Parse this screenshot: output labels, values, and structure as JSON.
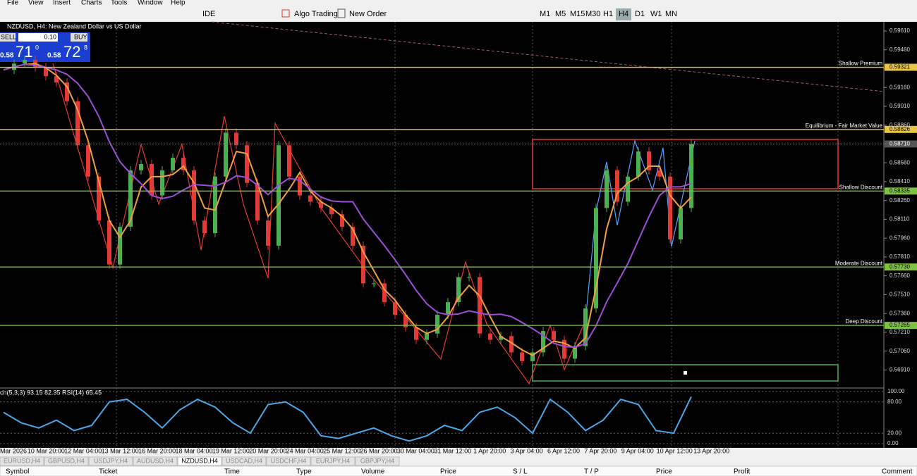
{
  "menu": [
    "File",
    "View",
    "Insert",
    "Charts",
    "Tools",
    "Window",
    "Help"
  ],
  "toolbar": {
    "ide": "IDE",
    "algo": "Algo Trading",
    "new_order": "New Order",
    "timeframes": [
      "M1",
      "M5",
      "M15",
      "M30",
      "H1",
      "H4",
      "D1",
      "W1",
      "MN"
    ],
    "active_timeframe": 5
  },
  "chart": {
    "title": "NZDUSD, H4:  New Zealand Dollar vs US Dollar",
    "trade": {
      "sell": "SELL",
      "volume": "0.10",
      "buy": "BUY",
      "bid_big": "0.58",
      "bid": "71",
      "bid_sup": "0",
      "ask_big": "0.58",
      "ask": "72",
      "ask_sup": "8"
    },
    "ylim": [
      0.56772,
      0.59683
    ],
    "yticks": [
      {
        "value": 0.5961,
        "label": "0.59610"
      },
      {
        "value": 0.5946,
        "label": "0.59460"
      },
      {
        "value": 0.5931,
        "label": "0.59310"
      },
      {
        "value": 0.5916,
        "label": "0.59160"
      },
      {
        "value": 0.5901,
        "label": "0.59010"
      },
      {
        "value": 0.5886,
        "label": "0.58860"
      },
      {
        "value": 0.5871,
        "label": "0.58710"
      },
      {
        "value": 0.5856,
        "label": "0.58560"
      },
      {
        "value": 0.5841,
        "label": "0.58410"
      },
      {
        "value": 0.5826,
        "label": "0.58260"
      },
      {
        "value": 0.5811,
        "label": "0.58110"
      },
      {
        "value": 0.5796,
        "label": "0.57960"
      },
      {
        "value": 0.5781,
        "label": "0.57810"
      },
      {
        "value": 0.5766,
        "label": "0.57660"
      },
      {
        "value": 0.5751,
        "label": "0.57510"
      },
      {
        "value": 0.5736,
        "label": "0.57360"
      },
      {
        "value": 0.5721,
        "label": "0.57210"
      },
      {
        "value": 0.5706,
        "label": "0.57060"
      },
      {
        "value": 0.5691,
        "label": "0.56910"
      }
    ],
    "levels": [
      {
        "name": "Shallow Premium",
        "value": 0.59321,
        "label": "0.59321",
        "color": "#e8c547"
      },
      {
        "name": "Equilibrium - Fair Market Value",
        "value": 0.58826,
        "label": "0.58826",
        "color": "#e8c547"
      },
      {
        "name": "Shallow Discount",
        "value": 0.58335,
        "label": "0.58335",
        "color": "#7fc241"
      },
      {
        "name": "Moderate Discount",
        "value": 0.5773,
        "label": "0.57730",
        "color": "#7fc241"
      },
      {
        "name": "Deep Discount",
        "value": 0.57265,
        "label": "0.57265",
        "color": "#7fc241"
      }
    ],
    "current": {
      "value": 0.5871,
      "label": "0.58710"
    },
    "closes": [
      0.593,
      0.5935,
      0.5938,
      0.5932,
      0.5925,
      0.592,
      0.5905,
      0.587,
      0.5845,
      0.581,
      0.5775,
      0.5805,
      0.585,
      0.5855,
      0.583,
      0.585,
      0.586,
      0.585,
      0.581,
      0.58,
      0.5845,
      0.588,
      0.587,
      0.584,
      0.581,
      0.579,
      0.587,
      0.5845,
      0.583,
      0.5825,
      0.582,
      0.5815,
      0.5805,
      0.579,
      0.576,
      0.576,
      0.5745,
      0.5735,
      0.5725,
      0.5715,
      0.572,
      0.5735,
      0.5745,
      0.5765,
      0.5765,
      0.572,
      0.5715,
      0.5718,
      0.5705,
      0.5698,
      0.5705,
      0.5722,
      0.5715,
      0.57,
      0.571,
      0.574,
      0.582,
      0.585,
      0.5825,
      0.5845,
      0.5865,
      0.585,
      0.5845,
      0.5795,
      0.582,
      0.5871
    ],
    "xticks": [
      "Mar 2026",
      "10 Mar 20:00",
      "12 Mar 04:00",
      "13 Mar 12:00",
      "16 Mar 20:00",
      "18 Mar 04:00",
      "19 Mar 12:00",
      "20 Mar 20:00",
      "24 Mar 04:00",
      "25 Mar 12:00",
      "26 Mar 20:00",
      "30 Mar 04:00",
      "31 Mar 12:00",
      "1 Apr 20:00",
      "3 Apr 04:00",
      "6 Apr 12:00",
      "7 Apr 20:00",
      "9 Apr 04:00",
      "10 Apr 12:00",
      "13 Apr 20:00"
    ]
  },
  "indicator": {
    "title": "ch(5,3,3) 93.15 82.35 RSI(14) 65.45",
    "ylim": [
      0,
      100
    ],
    "yticks": [
      {
        "value": 100,
        "label": "100.00"
      },
      {
        "value": 80,
        "label": "80.00"
      },
      {
        "value": 20,
        "label": "20.00"
      },
      {
        "value": 0,
        "label": "0.00"
      }
    ],
    "color": "#4aa8e8",
    "values": [
      60,
      40,
      30,
      45,
      25,
      35,
      80,
      85,
      60,
      30,
      65,
      85,
      70,
      40,
      20,
      75,
      80,
      60,
      15,
      10,
      20,
      30,
      15,
      5,
      15,
      35,
      25,
      60,
      70,
      50,
      20,
      85,
      60,
      25,
      45,
      85,
      75,
      25,
      20,
      90
    ]
  },
  "tabs": [
    "EURUSD,H4",
    "GBPUSD,H4",
    "USDJPY,H4",
    "AUDUSD,H4",
    "NZDUSD,H4",
    "USDCAD,H4",
    "USDCHF,H4",
    "EURJPY,H4",
    "GBPJPY,H4"
  ],
  "active_tab": 4,
  "columns": [
    "Symbol",
    "Ticket",
    "Time",
    "Type",
    "Volume",
    "Price",
    "S / L",
    "T / P",
    "Price",
    "Profit",
    "Comment"
  ]
}
